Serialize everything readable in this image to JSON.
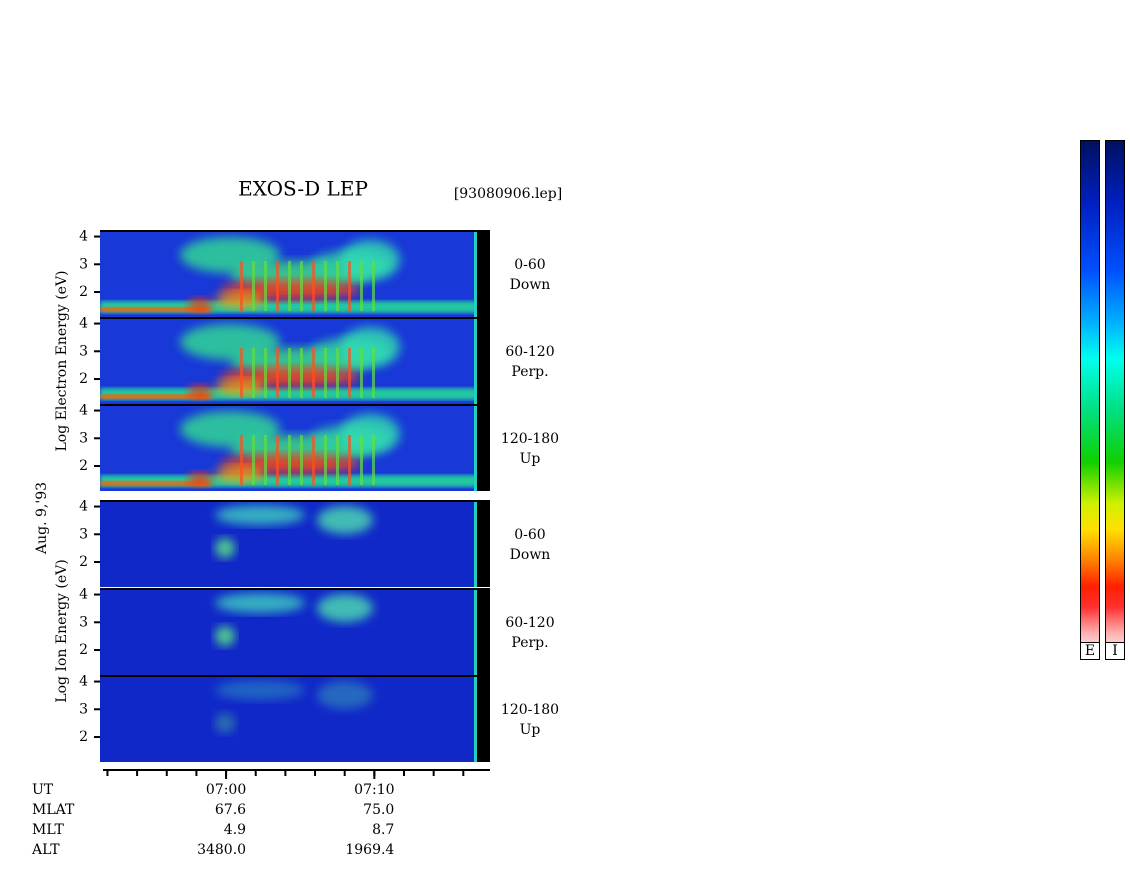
{
  "title": "EXOS-D LEP",
  "file": "[93080906.lep]",
  "date": "Aug. 9,'93",
  "electron_label": "Log Electron Energy (eV)",
  "ion_label": "Log Ion Energy (eV)",
  "electron_panels": [
    {
      "angle": "0-60",
      "direction": "Down",
      "ylim": [
        1.1,
        4.2
      ],
      "yticks": [
        2,
        3,
        4
      ]
    },
    {
      "angle": "60-120",
      "direction": "Perp.",
      "ylim": [
        1.1,
        4.2
      ],
      "yticks": [
        2,
        3,
        4
      ]
    },
    {
      "angle": "120-180",
      "direction": "Up",
      "ylim": [
        1.1,
        4.2
      ],
      "yticks": [
        2,
        3,
        4
      ]
    }
  ],
  "ion_panels": [
    {
      "angle": "0-60",
      "direction": "Down",
      "ylim": [
        1.1,
        4.2
      ],
      "yticks": [
        2,
        3,
        4
      ]
    },
    {
      "angle": "60-120",
      "direction": "Perp.",
      "ylim": [
        1.1,
        4.2
      ],
      "yticks": [
        2,
        3,
        4
      ]
    },
    {
      "angle": "120-180",
      "direction": "Up",
      "ylim": [
        1.1,
        4.2
      ],
      "yticks": [
        2,
        3,
        4
      ]
    }
  ],
  "time_axis": {
    "label": "UT",
    "xlim": [
      411.7,
      437.8
    ],
    "xticks": [
      {
        "value": 420,
        "label": "07:00"
      },
      {
        "value": 430,
        "label": "07:10"
      }
    ],
    "minor_ticks": [
      412,
      414,
      416,
      418,
      420,
      422,
      424,
      426,
      428,
      430,
      432,
      434,
      436
    ]
  },
  "ephemeris": [
    {
      "label": "MLAT",
      "values": [
        "67.6",
        "75.0"
      ]
    },
    {
      "label": "MLT",
      "values": [
        "4.9",
        "8.7"
      ]
    },
    {
      "label": "ALT",
      "values": [
        "3480.0",
        "1969.4"
      ]
    }
  ],
  "colorbar_labels": [
    "E",
    "I"
  ]
}
